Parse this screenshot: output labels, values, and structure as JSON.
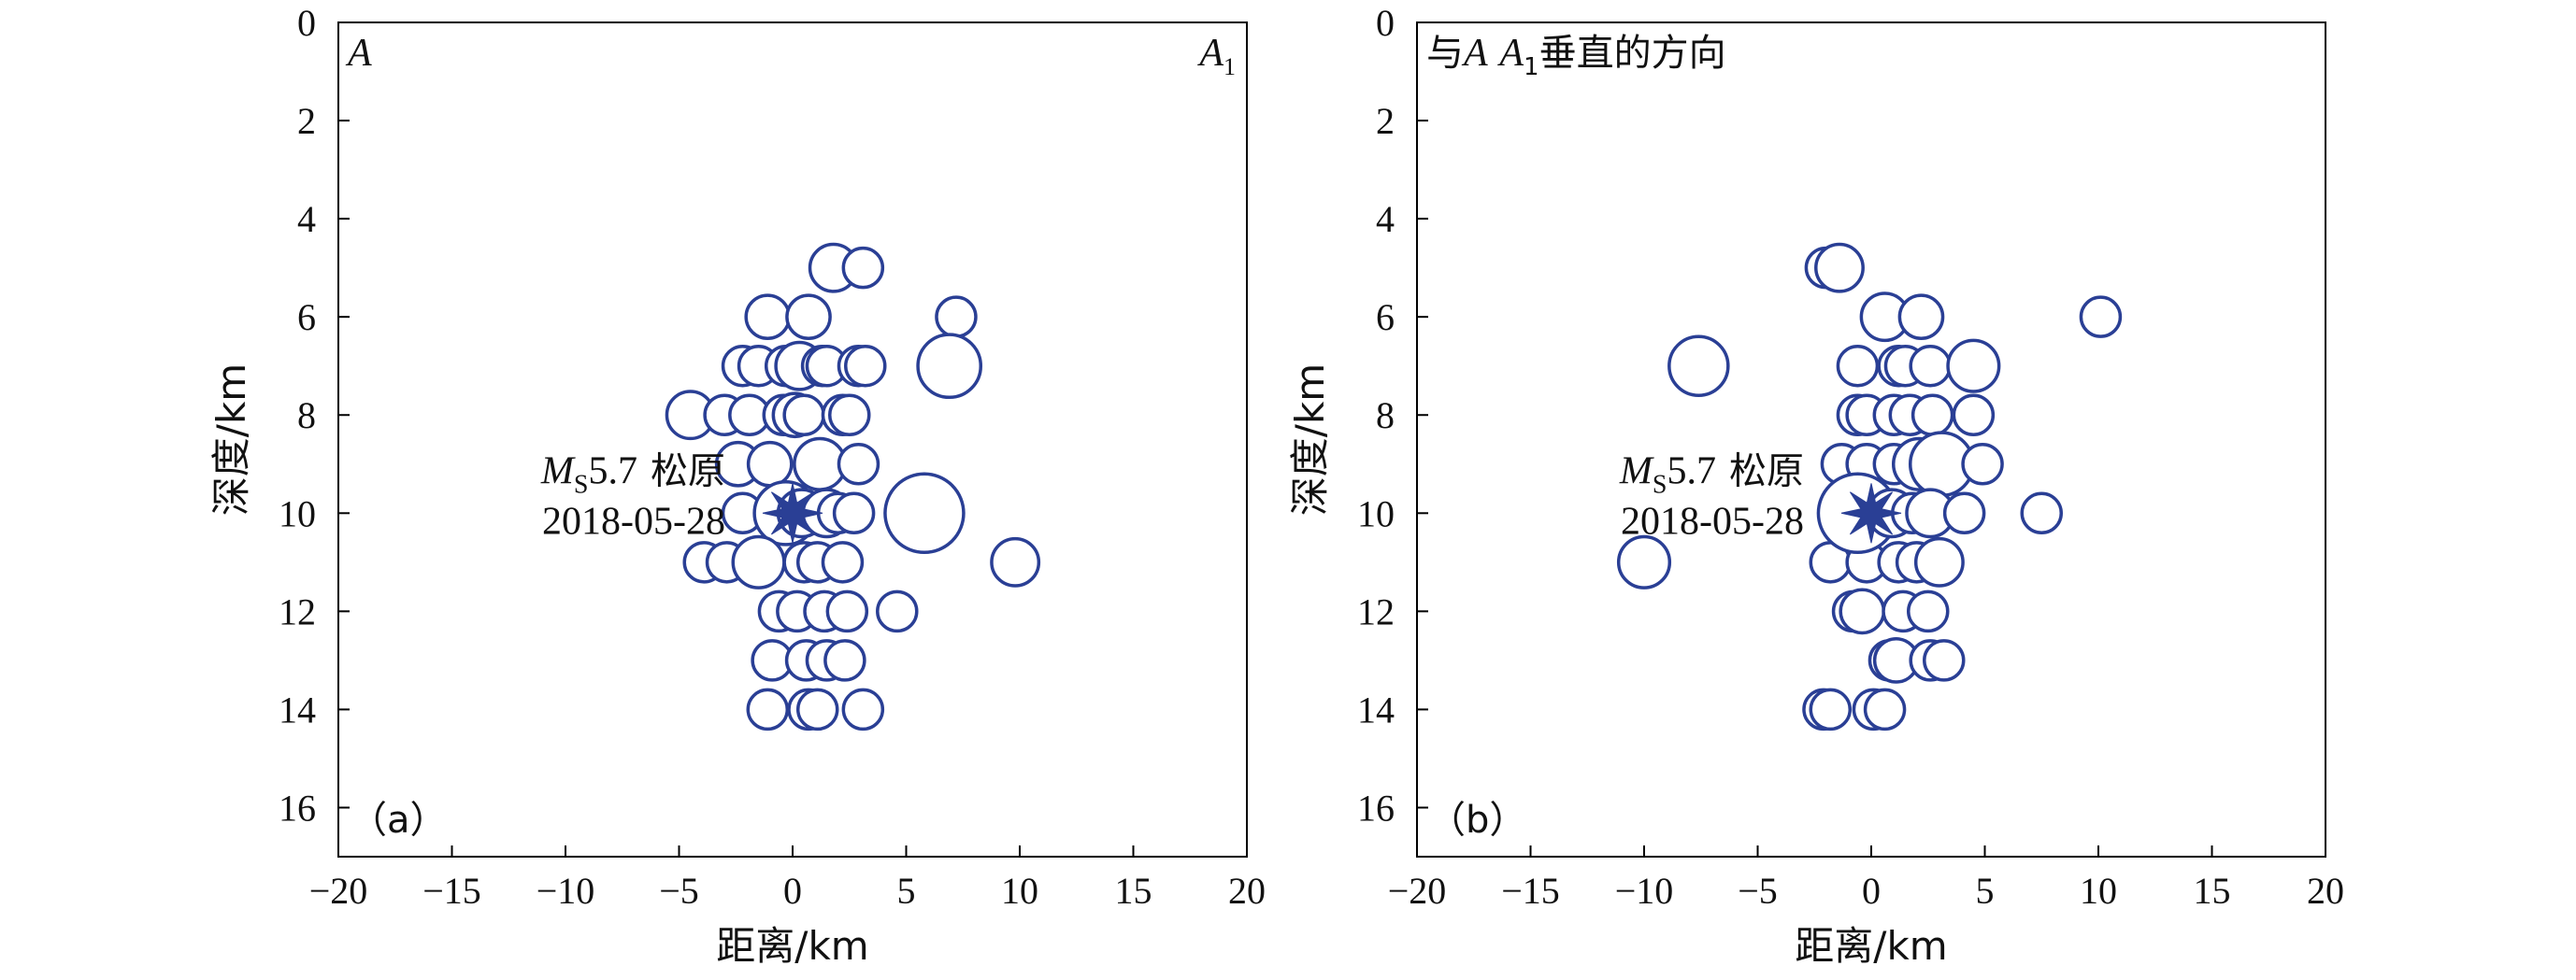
{
  "colors": {
    "marker": "#2a3f95",
    "marker_fill": "#ffffff",
    "axis": "#000000"
  },
  "chart_data": [
    {
      "type": "scatter",
      "panel_label": "（a）",
      "xlabel": "距离/km",
      "ylabel": "深度/km",
      "corner_left": "A",
      "corner_right_main": "A",
      "corner_right_sub": "1",
      "xlim": [
        -20,
        20
      ],
      "ylim": [
        17,
        0
      ],
      "x_ticks": [
        "−20",
        "−15",
        "−10",
        "−5",
        "0",
        "5",
        "10",
        "15",
        "20"
      ],
      "y_ticks": [
        "0",
        "2",
        "4",
        "6",
        "8",
        "10",
        "12",
        "14",
        "16"
      ],
      "mainshock": {
        "x": 0,
        "y": 10,
        "label_m": "M",
        "label_sub": "S",
        "label_mag": "5.7",
        "label_place": "松原",
        "date": "2018-05-28"
      },
      "points": [
        {
          "x": 1.8,
          "y": 5,
          "s": 1.2
        },
        {
          "x": 3.1,
          "y": 5,
          "s": 1.0
        },
        {
          "x": -1.1,
          "y": 6,
          "s": 1.1
        },
        {
          "x": 0.7,
          "y": 6,
          "s": 1.1
        },
        {
          "x": 7.2,
          "y": 6,
          "s": 1.0
        },
        {
          "x": -2.2,
          "y": 7,
          "s": 1.0
        },
        {
          "x": -1.5,
          "y": 7,
          "s": 1.0
        },
        {
          "x": -0.3,
          "y": 7,
          "s": 1.0
        },
        {
          "x": 0.3,
          "y": 7,
          "s": 1.2
        },
        {
          "x": 1.3,
          "y": 7,
          "s": 1.0
        },
        {
          "x": 1.5,
          "y": 7,
          "s": 1.0
        },
        {
          "x": 2.9,
          "y": 7,
          "s": 1.0
        },
        {
          "x": 3.2,
          "y": 7,
          "s": 1.0
        },
        {
          "x": 6.9,
          "y": 7,
          "s": 1.6
        },
        {
          "x": -4.5,
          "y": 8,
          "s": 1.2
        },
        {
          "x": -3.0,
          "y": 8,
          "s": 1.0
        },
        {
          "x": -1.9,
          "y": 8,
          "s": 1.0
        },
        {
          "x": -0.4,
          "y": 8,
          "s": 1.0
        },
        {
          "x": 0.1,
          "y": 8,
          "s": 1.1
        },
        {
          "x": 0.5,
          "y": 8,
          "s": 1.0
        },
        {
          "x": 2.2,
          "y": 8,
          "s": 1.0
        },
        {
          "x": 2.5,
          "y": 8,
          "s": 1.0
        },
        {
          "x": -2.4,
          "y": 9,
          "s": 1.1
        },
        {
          "x": -1.0,
          "y": 9,
          "s": 1.1
        },
        {
          "x": 1.2,
          "y": 9,
          "s": 1.3
        },
        {
          "x": 2.9,
          "y": 9,
          "s": 1.0
        },
        {
          "x": -2.2,
          "y": 10,
          "s": 1.0
        },
        {
          "x": -0.3,
          "y": 10,
          "s": 1.6
        },
        {
          "x": 0.4,
          "y": 10,
          "s": 1.2
        },
        {
          "x": 1.5,
          "y": 10,
          "s": 1.2
        },
        {
          "x": 2.0,
          "y": 10,
          "s": 1.0
        },
        {
          "x": 2.7,
          "y": 10,
          "s": 1.0
        },
        {
          "x": 5.8,
          "y": 10,
          "s": 2.0
        },
        {
          "x": -3.9,
          "y": 11,
          "s": 1.0
        },
        {
          "x": -2.9,
          "y": 11,
          "s": 1.0
        },
        {
          "x": -1.5,
          "y": 11,
          "s": 1.3
        },
        {
          "x": 0.5,
          "y": 11,
          "s": 1.0
        },
        {
          "x": 1.1,
          "y": 11,
          "s": 1.0
        },
        {
          "x": 2.2,
          "y": 11,
          "s": 1.0
        },
        {
          "x": 9.8,
          "y": 11,
          "s": 1.2
        },
        {
          "x": -0.6,
          "y": 12,
          "s": 1.0
        },
        {
          "x": 0.2,
          "y": 12,
          "s": 1.0
        },
        {
          "x": 1.4,
          "y": 12,
          "s": 1.0
        },
        {
          "x": 2.4,
          "y": 12,
          "s": 1.0
        },
        {
          "x": 4.6,
          "y": 12,
          "s": 1.0
        },
        {
          "x": -0.9,
          "y": 13,
          "s": 1.0
        },
        {
          "x": 0.6,
          "y": 13,
          "s": 1.0
        },
        {
          "x": 1.5,
          "y": 13,
          "s": 1.0
        },
        {
          "x": 2.3,
          "y": 13,
          "s": 1.0
        },
        {
          "x": -1.1,
          "y": 14,
          "s": 1.0
        },
        {
          "x": 0.7,
          "y": 14,
          "s": 1.0
        },
        {
          "x": 1.1,
          "y": 14,
          "s": 1.0
        },
        {
          "x": 3.1,
          "y": 14,
          "s": 1.0
        }
      ]
    },
    {
      "type": "scatter",
      "panel_label": "（b）",
      "xlabel": "距离/km",
      "ylabel": "深度/km",
      "corner_left_pre": "与",
      "corner_left_a": "A",
      "corner_left_a1": "A",
      "corner_left_a1_sub": "1",
      "corner_left_post": "垂直的方向",
      "xlim": [
        -20,
        20
      ],
      "ylim": [
        17,
        0
      ],
      "x_ticks": [
        "−20",
        "−15",
        "−10",
        "−5",
        "0",
        "5",
        "10",
        "15",
        "20"
      ],
      "y_ticks": [
        "0",
        "2",
        "4",
        "6",
        "8",
        "10",
        "12",
        "14",
        "16"
      ],
      "mainshock": {
        "x": 0,
        "y": 10,
        "label_m": "M",
        "label_sub": "S",
        "label_mag": "5.7",
        "label_place": "松原",
        "date": "2018-05-28"
      },
      "points": [
        {
          "x": -2.0,
          "y": 5,
          "s": 1.0
        },
        {
          "x": -1.4,
          "y": 5,
          "s": 1.2
        },
        {
          "x": 0.6,
          "y": 6,
          "s": 1.2
        },
        {
          "x": 2.2,
          "y": 6,
          "s": 1.1
        },
        {
          "x": 10.1,
          "y": 6,
          "s": 1.0
        },
        {
          "x": -7.6,
          "y": 7,
          "s": 1.5
        },
        {
          "x": -0.6,
          "y": 7,
          "s": 1.0
        },
        {
          "x": 1.2,
          "y": 7,
          "s": 1.0
        },
        {
          "x": 1.5,
          "y": 7,
          "s": 1.0
        },
        {
          "x": 2.6,
          "y": 7,
          "s": 1.0
        },
        {
          "x": 4.5,
          "y": 7,
          "s": 1.3
        },
        {
          "x": -0.6,
          "y": 8,
          "s": 1.0
        },
        {
          "x": -0.2,
          "y": 8,
          "s": 1.0
        },
        {
          "x": 1.0,
          "y": 8,
          "s": 1.0
        },
        {
          "x": 1.7,
          "y": 8,
          "s": 1.0
        },
        {
          "x": 2.7,
          "y": 8,
          "s": 1.0
        },
        {
          "x": 4.5,
          "y": 8,
          "s": 1.0
        },
        {
          "x": -1.3,
          "y": 9,
          "s": 1.0
        },
        {
          "x": -0.2,
          "y": 9,
          "s": 1.0
        },
        {
          "x": 1.0,
          "y": 9,
          "s": 1.0
        },
        {
          "x": 2.1,
          "y": 9,
          "s": 1.3
        },
        {
          "x": 3.1,
          "y": 9,
          "s": 1.6
        },
        {
          "x": 4.9,
          "y": 9,
          "s": 1.0
        },
        {
          "x": -10.0,
          "y": 11,
          "s": 1.3
        },
        {
          "x": -1.8,
          "y": 11,
          "s": 1.0
        },
        {
          "x": -0.2,
          "y": 11,
          "s": 1.0
        },
        {
          "x": 1.2,
          "y": 11,
          "s": 1.0
        },
        {
          "x": 2.0,
          "y": 11,
          "s": 1.0
        },
        {
          "x": 3.0,
          "y": 11,
          "s": 1.2
        },
        {
          "x": -0.6,
          "y": 10,
          "s": 2.0
        },
        {
          "x": 0.9,
          "y": 10,
          "s": 1.2
        },
        {
          "x": 1.8,
          "y": 10,
          "s": 1.0
        },
        {
          "x": 2.6,
          "y": 10,
          "s": 1.2
        },
        {
          "x": 4.1,
          "y": 10,
          "s": 1.0
        },
        {
          "x": 7.5,
          "y": 10,
          "s": 1.0
        },
        {
          "x": -0.8,
          "y": 12,
          "s": 1.0
        },
        {
          "x": -0.4,
          "y": 12,
          "s": 1.1
        },
        {
          "x": 1.4,
          "y": 12,
          "s": 1.0
        },
        {
          "x": 2.5,
          "y": 12,
          "s": 1.0
        },
        {
          "x": 0.8,
          "y": 13,
          "s": 1.0
        },
        {
          "x": 1.1,
          "y": 13,
          "s": 1.1
        },
        {
          "x": 2.6,
          "y": 13,
          "s": 1.0
        },
        {
          "x": 3.2,
          "y": 13,
          "s": 1.0
        },
        {
          "x": -2.1,
          "y": 14,
          "s": 1.0
        },
        {
          "x": -1.8,
          "y": 14,
          "s": 1.0
        },
        {
          "x": 0.1,
          "y": 14,
          "s": 1.0
        },
        {
          "x": 0.6,
          "y": 14,
          "s": 1.0
        }
      ]
    }
  ]
}
